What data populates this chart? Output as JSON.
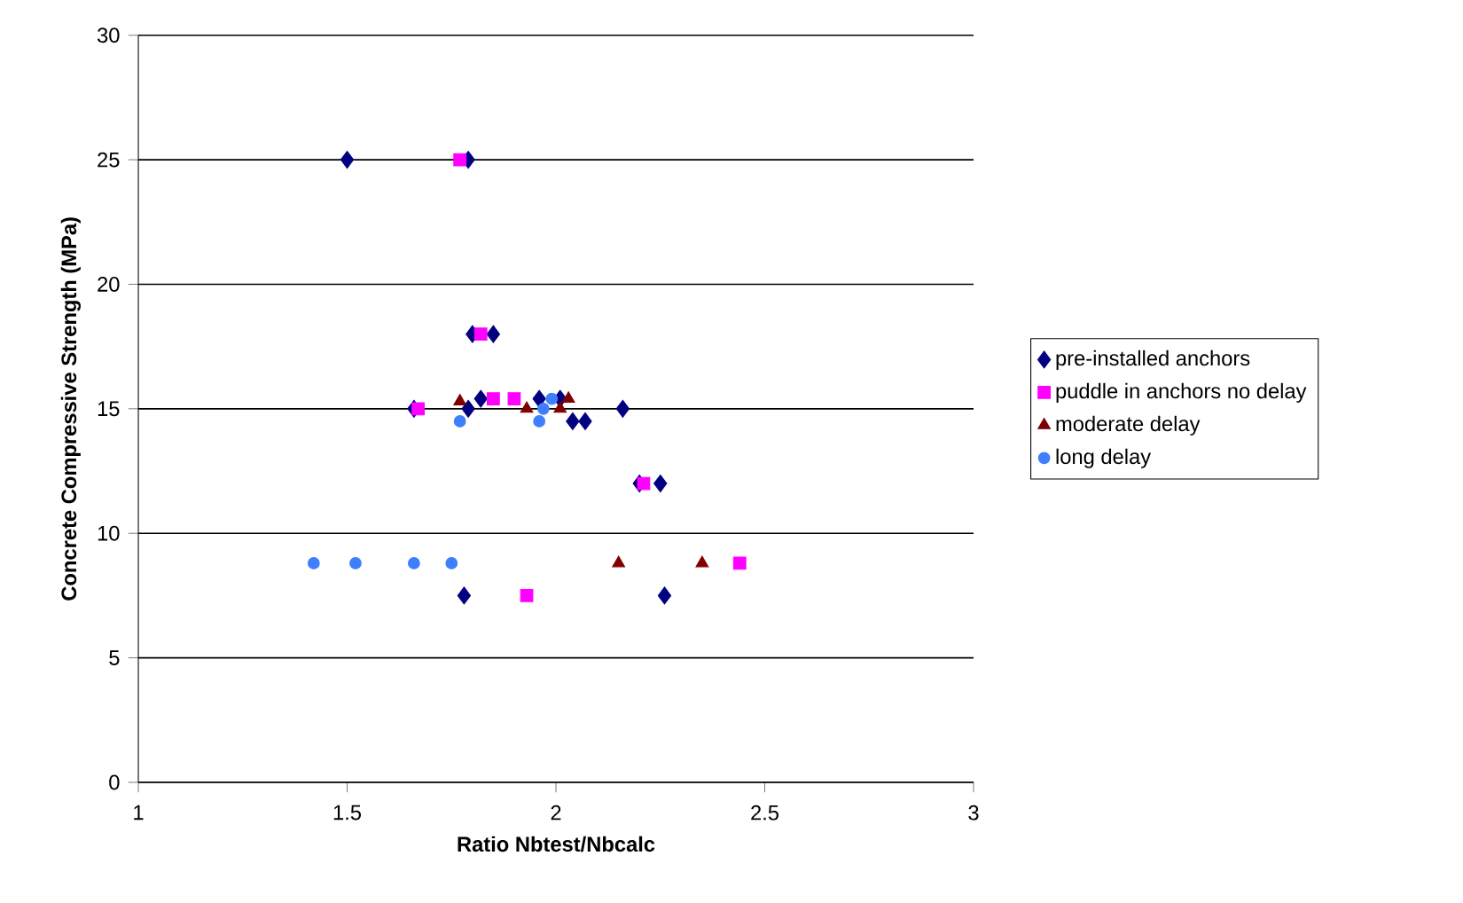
{
  "chart_data": {
    "type": "scatter",
    "xlabel": "Ratio Nbtest/Nbcalc",
    "ylabel": "Concrete Compressive Strength (MPa)",
    "xlim": [
      1,
      3
    ],
    "ylim": [
      0,
      30
    ],
    "xticks": [
      1,
      1.5,
      2,
      2.5,
      3
    ],
    "yticks": [
      0,
      5,
      10,
      15,
      20,
      25,
      30
    ],
    "grid": "y",
    "legend": "right",
    "series": [
      {
        "name": "pre-installed anchors",
        "color": "#000080",
        "marker": "diamond",
        "x": [
          1.5,
          1.79,
          1.8,
          1.85,
          1.66,
          1.79,
          1.82,
          1.96,
          2.01,
          2.04,
          2.07,
          2.16,
          2.2,
          2.25,
          1.78,
          2.26
        ],
        "values": [
          25,
          25,
          18,
          18,
          15,
          15,
          15.4,
          15.4,
          15.4,
          14.5,
          14.5,
          15,
          12,
          12,
          7.5,
          7.5
        ]
      },
      {
        "name": "puddle in anchors no delay",
        "color": "#ff00ff",
        "marker": "square",
        "x": [
          1.77,
          1.82,
          1.67,
          1.85,
          1.9,
          2.21,
          2.44,
          1.93
        ],
        "values": [
          25,
          18,
          15,
          15.4,
          15.4,
          12,
          8.8,
          7.5
        ]
      },
      {
        "name": "moderate delay",
        "color": "#800000",
        "marker": "triangle",
        "x": [
          1.77,
          1.93,
          2.01,
          2.03,
          2.15,
          2.35
        ],
        "values": [
          15.3,
          15,
          15,
          15.4,
          8.8,
          8.8
        ]
      },
      {
        "name": "long delay",
        "color": "#3f7fff",
        "marker": "circle",
        "x": [
          1.77,
          1.96,
          1.97,
          1.99,
          1.42,
          1.52,
          1.66,
          1.75
        ],
        "values": [
          14.5,
          14.5,
          15,
          15.4,
          8.8,
          8.8,
          8.8,
          8.8
        ]
      }
    ]
  }
}
